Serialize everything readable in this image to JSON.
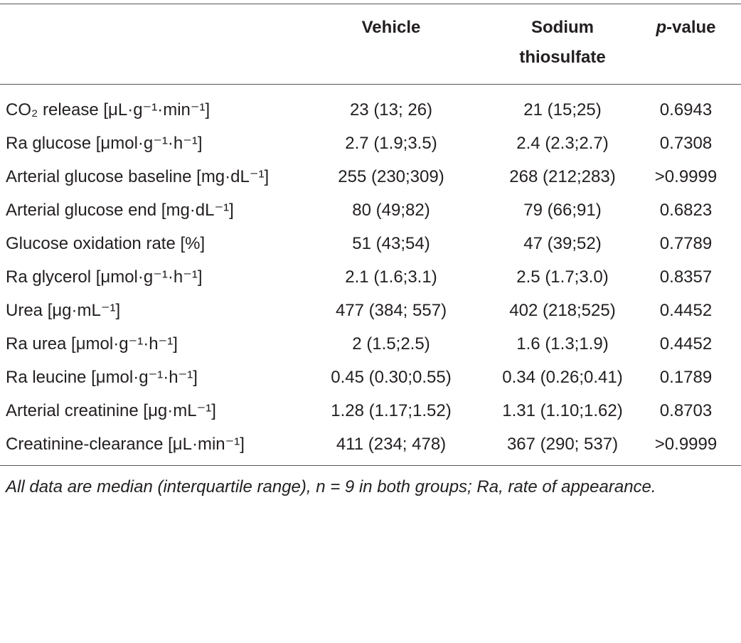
{
  "header": {
    "label": "",
    "vehicle": "Vehicle",
    "sodium": "Sodium thiosulfate",
    "pvalue": {
      "italic": "p",
      "rest": "-value"
    }
  },
  "table": {
    "rows": [
      [
        "CO₂ release [μL·g⁻¹·min⁻¹]",
        "23 (13; 26)",
        "21 (15;25)",
        "0.6943"
      ],
      [
        "Ra glucose [μmol·g⁻¹·h⁻¹]",
        "2.7 (1.9;3.5)",
        "2.4 (2.3;2.7)",
        "0.7308"
      ],
      [
        "Arterial glucose baseline [mg·dL⁻¹]",
        "255 (230;309)",
        "268 (212;283)",
        ">0.9999"
      ],
      [
        "Arterial glucose end [mg·dL⁻¹]",
        "80 (49;82)",
        "79 (66;91)",
        "0.6823"
      ],
      [
        "Glucose oxidation rate [%]",
        "51 (43;54)",
        "47 (39;52)",
        "0.7789"
      ],
      [
        "Ra glycerol [μmol·g⁻¹·h⁻¹]",
        "2.1 (1.6;3.1)",
        "2.5 (1.7;3.0)",
        "0.8357"
      ],
      [
        "Urea [μg·mL⁻¹]",
        "477 (384; 557)",
        "402 (218;525)",
        "0.4452"
      ],
      [
        "Ra urea [μmol·g⁻¹·h⁻¹]",
        "2 (1.5;2.5)",
        "1.6 (1.3;1.9)",
        "0.4452"
      ],
      [
        "Ra leucine [μmol·g⁻¹·h⁻¹]",
        "0.45 (0.30;0.55)",
        "0.34 (0.26;0.41)",
        "0.1789"
      ],
      [
        "Arterial creatinine [μg·mL⁻¹]",
        "1.28 (1.17;1.52)",
        "1.31 (1.10;1.62)",
        "0.8703"
      ],
      [
        "Creatinine-clearance [μL·min⁻¹]",
        "411 (234; 478)",
        "367 (290; 537)",
        ">0.9999"
      ]
    ]
  },
  "footnote": "All data are median (interquartile range), n = 9 in both groups; Ra, rate of appearance."
}
